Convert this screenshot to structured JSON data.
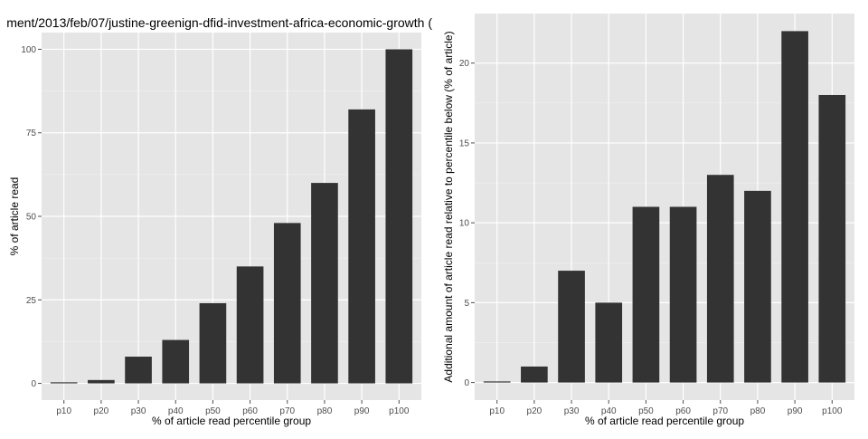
{
  "title": "ment/2013/feb/07/justine-greenign-dfid-investment-africa-economic-growth (",
  "chart_data": [
    {
      "type": "bar",
      "categories": [
        "p10",
        "p20",
        "p30",
        "p40",
        "p50",
        "p60",
        "p70",
        "p80",
        "p90",
        "p100"
      ],
      "values": [
        0,
        1,
        8,
        13,
        24,
        35,
        48,
        60,
        82,
        100
      ],
      "xlabel": "% of article read percentile group",
      "ylabel": "% of article read",
      "ylim": [
        -5,
        105
      ],
      "yticks": [
        0,
        25,
        50,
        75,
        100
      ],
      "grid": true,
      "legend": "none"
    },
    {
      "type": "bar",
      "categories": [
        "p10",
        "p20",
        "p30",
        "p40",
        "p50",
        "p60",
        "p70",
        "p80",
        "p90",
        "p100"
      ],
      "values": [
        0,
        1,
        7,
        5,
        11,
        11,
        13,
        12,
        22,
        18
      ],
      "xlabel": "% of article read percentile group",
      "ylabel": "Additional amount of article read relative to percentile below (% of article)",
      "ylim": [
        -1.1,
        23.1
      ],
      "yticks": [
        0,
        5,
        10,
        15,
        20
      ],
      "grid": true,
      "legend": "none"
    }
  ]
}
